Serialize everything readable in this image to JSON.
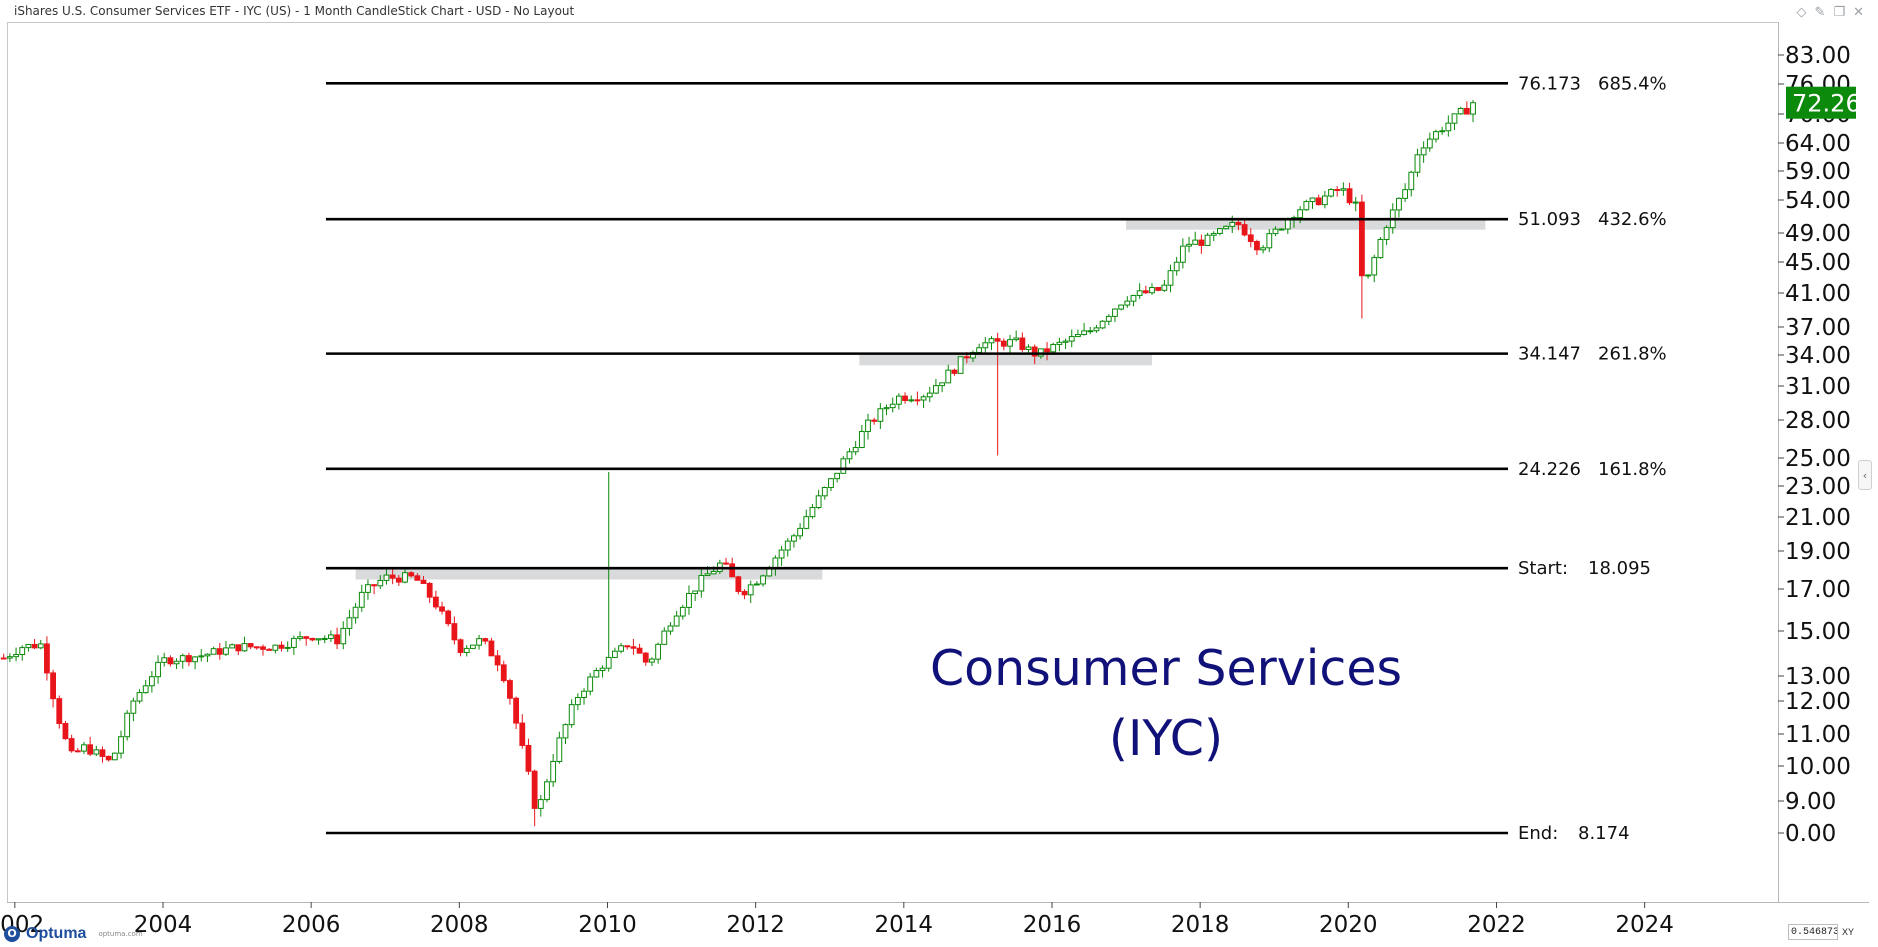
{
  "window": {
    "title": "iShares U.S. Consumer Services ETF - IYC (US) - 1 Month CandleStick Chart - USD - No Layout"
  },
  "footer": {
    "brand": "Optuma",
    "url": "optuma.com",
    "coord_readout": "0.5468730",
    "coord_mode": "XY"
  },
  "chart_data": {
    "type": "candlestick",
    "title": "Consumer Services",
    "subtitle": "(IYC)",
    "interval": "1 Month",
    "currency": "USD",
    "grid": false,
    "x_axis": {
      "range": [
        2001.8,
        2025.8
      ],
      "tick_labels": [
        "2002",
        "2004",
        "2006",
        "2008",
        "2010",
        "2012",
        "2014",
        "2016",
        "2018",
        "2020",
        "2022",
        "2024"
      ]
    },
    "y_axis": {
      "tick_labels": [
        "83.00",
        "76.00",
        "70.00",
        "64.00",
        "59.00",
        "54.00",
        "49.00",
        "45.00",
        "41.00",
        "37.00",
        "34.00",
        "31.00",
        "28.00",
        "25.00",
        "23.00",
        "21.00",
        "19.00",
        "17.00",
        "15.00",
        "13.00",
        "12.00",
        "11.00",
        "10.00",
        "9.00",
        "0.00"
      ]
    },
    "last_price": {
      "label": "72.26",
      "value": 72.26,
      "color": "#0b8a0b"
    },
    "up_color": "#0a8a0a",
    "down_color": "#e8161b",
    "title_color": "#11117a",
    "levels": [
      {
        "price": 76.173,
        "label": "76.173",
        "pct": "685.4%",
        "start_year": 2006.2
      },
      {
        "price": 51.093,
        "label": "51.093",
        "pct": "432.6%",
        "start_year": 2006.2
      },
      {
        "price": 34.147,
        "label": "34.147",
        "pct": "261.8%",
        "start_year": 2006.2
      },
      {
        "price": 24.226,
        "label": "24.226",
        "pct": "161.8%",
        "start_year": 2006.2
      },
      {
        "price": 18.095,
        "label": "Start:",
        "pct": "18.095",
        "start_year": 2006.2
      },
      {
        "price": 8.174,
        "label": "End:",
        "pct": "8.174",
        "start_year": 2006.2
      }
    ],
    "zones": [
      {
        "from_year": 2006.6,
        "to_year": 2012.9,
        "low": 17.5,
        "high": 18.095
      },
      {
        "from_year": 2013.4,
        "to_year": 2017.35,
        "low": 33.0,
        "high": 34.147
      },
      {
        "from_year": 2017.0,
        "to_year": 2021.85,
        "low": 49.5,
        "high": 51.093
      }
    ],
    "price_anchors": [
      [
        2001.85,
        13.8
      ],
      [
        2002.1,
        14.3
      ],
      [
        2002.35,
        14.4
      ],
      [
        2002.55,
        11.8
      ],
      [
        2002.75,
        10.3
      ],
      [
        2002.95,
        10.6
      ],
      [
        2003.3,
        10.1
      ],
      [
        2003.6,
        12.0
      ],
      [
        2004.0,
        13.7
      ],
      [
        2004.5,
        13.9
      ],
      [
        2005.0,
        14.3
      ],
      [
        2005.5,
        14.3
      ],
      [
        2006.0,
        14.8
      ],
      [
        2006.35,
        14.6
      ],
      [
        2006.7,
        16.8
      ],
      [
        2007.0,
        17.6
      ],
      [
        2007.4,
        17.6
      ],
      [
        2007.7,
        16.2
      ],
      [
        2008.0,
        14.2
      ],
      [
        2008.3,
        14.6
      ],
      [
        2008.55,
        13.5
      ],
      [
        2008.8,
        11.0
      ],
      [
        2009.05,
        8.6
      ],
      [
        2009.3,
        10.5
      ],
      [
        2009.6,
        12.2
      ],
      [
        2009.9,
        13.4
      ],
      [
        2010.3,
        14.5
      ],
      [
        2010.55,
        13.5
      ],
      [
        2010.9,
        15.8
      ],
      [
        2011.3,
        17.6
      ],
      [
        2011.55,
        18.4
      ],
      [
        2011.8,
        16.8
      ],
      [
        2012.0,
        17.4
      ],
      [
        2012.5,
        19.8
      ],
      [
        2013.0,
        23.2
      ],
      [
        2013.5,
        27.5
      ],
      [
        2013.9,
        30.0
      ],
      [
        2014.3,
        30.3
      ],
      [
        2014.7,
        32.8
      ],
      [
        2015.0,
        35.2
      ],
      [
        2015.5,
        35.4
      ],
      [
        2015.8,
        34.0
      ],
      [
        2016.0,
        34.8
      ],
      [
        2016.5,
        36.5
      ],
      [
        2017.0,
        40.5
      ],
      [
        2017.5,
        41.5
      ],
      [
        2017.8,
        47.5
      ],
      [
        2018.1,
        48.0
      ],
      [
        2018.5,
        50.5
      ],
      [
        2018.8,
        47.0
      ],
      [
        2019.0,
        49.0
      ],
      [
        2019.3,
        52.5
      ],
      [
        2019.6,
        54.0
      ],
      [
        2019.9,
        56.0
      ],
      [
        2020.1,
        53.0
      ],
      [
        2020.2,
        41.0
      ],
      [
        2020.5,
        50.0
      ],
      [
        2020.8,
        56.5
      ],
      [
        2020.95,
        63.0
      ],
      [
        2021.25,
        67.0
      ],
      [
        2021.55,
        70.5
      ],
      [
        2021.72,
        72.26
      ]
    ]
  }
}
